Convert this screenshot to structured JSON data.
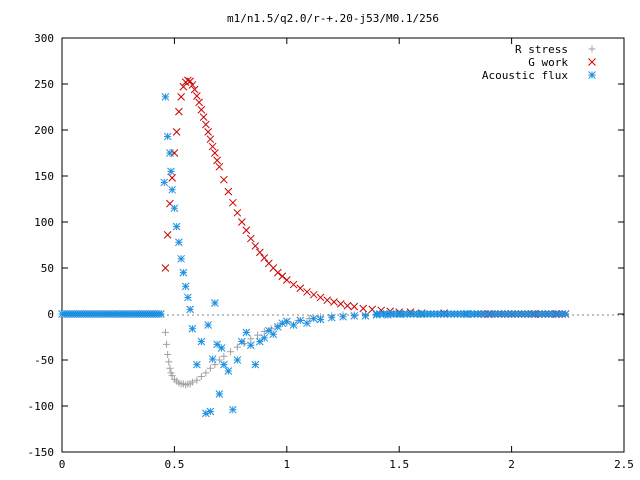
{
  "chart_data": {
    "type": "scatter",
    "title": "m1/n1.5/q2.0/r-+.20-j53/M0.1/256",
    "xlabel": "",
    "ylabel": "",
    "xlim": [
      0,
      2.5
    ],
    "ylim": [
      -150,
      300
    ],
    "x_ticks": [
      "0",
      "0.5",
      "1",
      "1.5",
      "2",
      "2.5"
    ],
    "y_ticks": [
      "-150",
      "-100",
      "-50",
      "0",
      "50",
      "100",
      "150",
      "200",
      "250",
      "300"
    ],
    "legend_position": "top-right",
    "grid": false,
    "series": [
      {
        "name": "R stress",
        "marker": "plus",
        "color": "#a0a0a0",
        "x": [
          0.46,
          0.465,
          0.47,
          0.475,
          0.48,
          0.485,
          0.49,
          0.5,
          0.51,
          0.52,
          0.53,
          0.54,
          0.55,
          0.56,
          0.57,
          0.58,
          0.6,
          0.62,
          0.64,
          0.66,
          0.68,
          0.7,
          0.72,
          0.75,
          0.78,
          0.81,
          0.84,
          0.87,
          0.9,
          0.93,
          0.96,
          1.0,
          1.05,
          1.1,
          1.15,
          1.2,
          1.25,
          1.3,
          1.35,
          1.4,
          1.45,
          1.5,
          1.55
        ],
        "y": [
          -20,
          -33,
          -44,
          -52,
          -59,
          -64,
          -67,
          -71,
          -73,
          -75,
          -76,
          -76,
          -77,
          -76,
          -76,
          -74,
          -72,
          -68,
          -64,
          -59,
          -55,
          -50,
          -46,
          -41,
          -36,
          -32,
          -27,
          -23,
          -19,
          -16,
          -13,
          -10,
          -7,
          -5,
          -3,
          -2,
          -1,
          -1,
          0,
          0,
          0,
          0,
          0
        ]
      },
      {
        "name": "G work",
        "marker": "cross",
        "color": "#cc0000",
        "x": [
          0.46,
          0.47,
          0.48,
          0.49,
          0.5,
          0.51,
          0.52,
          0.53,
          0.54,
          0.55,
          0.56,
          0.57,
          0.58,
          0.59,
          0.6,
          0.61,
          0.62,
          0.63,
          0.64,
          0.65,
          0.66,
          0.67,
          0.68,
          0.69,
          0.7,
          0.72,
          0.74,
          0.76,
          0.78,
          0.8,
          0.82,
          0.84,
          0.86,
          0.88,
          0.9,
          0.92,
          0.94,
          0.96,
          0.98,
          1.0,
          1.03,
          1.06,
          1.09,
          1.12,
          1.15,
          1.18,
          1.21,
          1.24,
          1.27,
          1.3,
          1.34,
          1.38,
          1.42,
          1.46,
          1.5,
          1.55,
          1.6,
          1.7,
          1.8,
          1.9,
          2.0,
          2.1,
          2.2
        ],
        "y": [
          50,
          86,
          120,
          148,
          175,
          198,
          220,
          236,
          247,
          252,
          254,
          253,
          249,
          244,
          237,
          230,
          222,
          214,
          206,
          198,
          190,
          182,
          175,
          167,
          160,
          146,
          133,
          121,
          110,
          100,
          91,
          82,
          74,
          67,
          61,
          55,
          50,
          45,
          41,
          37,
          32,
          28,
          24,
          21,
          18,
          15,
          13,
          11,
          9,
          8,
          6,
          5,
          4,
          3,
          2,
          2,
          1,
          1,
          0,
          0,
          0,
          0,
          0
        ]
      },
      {
        "name": "Acoustic flux",
        "marker": "star",
        "color": "#1e8fe0",
        "x": [
          0.455,
          0.46,
          0.47,
          0.48,
          0.485,
          0.49,
          0.5,
          0.51,
          0.52,
          0.53,
          0.54,
          0.55,
          0.56,
          0.57,
          0.58,
          0.6,
          0.62,
          0.64,
          0.65,
          0.66,
          0.67,
          0.68,
          0.69,
          0.7,
          0.71,
          0.72,
          0.74,
          0.76,
          0.78,
          0.8,
          0.82,
          0.84,
          0.86,
          0.88,
          0.9,
          0.92,
          0.94,
          0.96,
          0.98,
          1.0,
          1.03,
          1.06,
          1.09,
          1.12,
          1.15,
          1.2,
          1.25,
          1.3,
          1.35,
          1.4,
          1.45,
          1.5,
          1.6,
          1.7,
          1.8
        ],
        "y": [
          143,
          236,
          193,
          175,
          155,
          135,
          115,
          95,
          78,
          60,
          45,
          30,
          18,
          5,
          -16,
          -55,
          -30,
          -108,
          -12,
          -106,
          -49,
          12,
          -33,
          -87,
          -37,
          -55,
          -62,
          -104,
          -50,
          -30,
          -20,
          -34,
          -55,
          -30,
          -26,
          -18,
          -22,
          -14,
          -10,
          -8,
          -12,
          -7,
          -10,
          -5,
          -6,
          -4,
          -3,
          -2,
          -2,
          -1,
          -1,
          0,
          0,
          0,
          0
        ]
      }
    ]
  }
}
